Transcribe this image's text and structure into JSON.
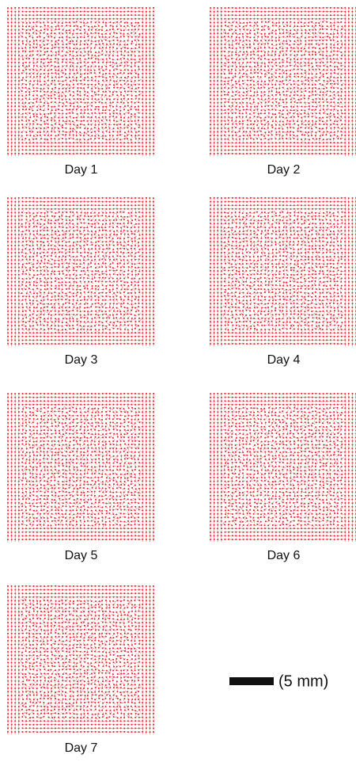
{
  "panels": [
    {
      "label": "Day 1"
    },
    {
      "label": "Day 2"
    },
    {
      "label": "Day 3"
    },
    {
      "label": "Day 4"
    },
    {
      "label": "Day 5"
    },
    {
      "label": "Day 6"
    },
    {
      "label": "Day 7"
    }
  ],
  "scale_bar": {
    "label": "(5 mm)"
  }
}
